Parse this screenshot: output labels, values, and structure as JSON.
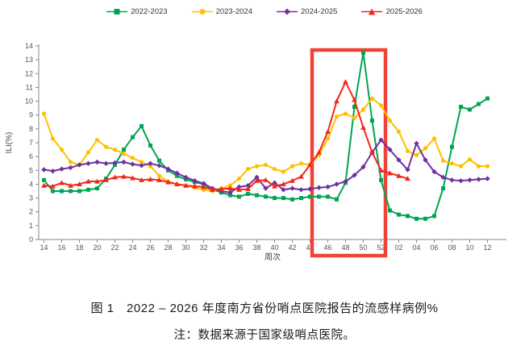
{
  "figure": {
    "title": "图 1　2022 – 2026 年度南方省份哨点医院报告的流感样病例%",
    "note": "注：数据来源于国家级哨点医院。"
  },
  "chart_data": {
    "type": "line",
    "title": "",
    "xlabel": "周次",
    "ylabel": "ILI(%)",
    "ylim": [
      0,
      14
    ],
    "y_ticks": [
      0,
      1,
      2,
      3,
      4,
      5,
      6,
      7,
      8,
      9,
      10,
      11,
      12,
      13,
      14
    ],
    "grid": false,
    "legend_position": "top-center",
    "x_tick_labels": [
      "14",
      "16",
      "18",
      "20",
      "22",
      "24",
      "26",
      "28",
      "30",
      "32",
      "34",
      "36",
      "38",
      "40",
      "42",
      "44",
      "46",
      "48",
      "50",
      "52",
      "02",
      "04",
      "06",
      "08",
      "10",
      "12"
    ],
    "categories": [
      "14",
      "15",
      "16",
      "17",
      "18",
      "19",
      "20",
      "21",
      "22",
      "23",
      "24",
      "25",
      "26",
      "27",
      "28",
      "29",
      "30",
      "31",
      "32",
      "33",
      "34",
      "35",
      "36",
      "37",
      "38",
      "39",
      "40",
      "41",
      "42",
      "43",
      "44",
      "45",
      "46",
      "47",
      "48",
      "49",
      "50",
      "51",
      "52",
      "01",
      "02",
      "03",
      "04",
      "05",
      "06",
      "07",
      "08",
      "09",
      "10",
      "11",
      "12"
    ],
    "series": [
      {
        "name": "2022-2023",
        "color": "#00a551",
        "marker": "square",
        "values": [
          4.3,
          3.5,
          3.5,
          3.5,
          3.5,
          3.6,
          3.7,
          4.4,
          5.4,
          6.5,
          7.4,
          8.2,
          6.8,
          5.7,
          5.0,
          4.6,
          4.35,
          4.15,
          4.0,
          3.6,
          3.4,
          3.2,
          3.1,
          3.3,
          3.2,
          3.1,
          3.0,
          3.0,
          2.9,
          3.0,
          3.1,
          3.1,
          3.1,
          2.9,
          4.1,
          9.6,
          13.5,
          8.6,
          4.3,
          2.1,
          1.8,
          1.7,
          1.5,
          1.5,
          1.7,
          3.7,
          6.7,
          9.6,
          9.4,
          9.8,
          10.2
        ]
      },
      {
        "name": "2023-2024",
        "color": "#ffc000",
        "marker": "circle",
        "values": [
          9.1,
          7.3,
          6.5,
          5.6,
          5.4,
          6.3,
          7.2,
          6.7,
          6.5,
          6.2,
          5.9,
          5.6,
          5.3,
          4.6,
          4.2,
          4.0,
          3.9,
          3.75,
          3.6,
          3.5,
          3.7,
          3.9,
          4.4,
          5.1,
          5.3,
          5.4,
          5.1,
          4.9,
          5.3,
          5.5,
          5.4,
          6.1,
          7.3,
          8.9,
          9.1,
          8.8,
          9.4,
          10.2,
          9.7,
          8.6,
          7.8,
          6.4,
          6.1,
          6.6,
          7.3,
          5.7,
          5.5,
          5.3,
          5.8,
          5.3,
          5.3
        ]
      },
      {
        "name": "2024-2025",
        "color": "#7030a0",
        "marker": "diamond",
        "values": [
          5.05,
          4.95,
          5.1,
          5.2,
          5.4,
          5.5,
          5.6,
          5.5,
          5.55,
          5.6,
          5.45,
          5.35,
          5.5,
          5.35,
          5.1,
          4.8,
          4.5,
          4.25,
          4.05,
          3.7,
          3.5,
          3.4,
          3.8,
          3.9,
          4.5,
          3.7,
          4.1,
          3.6,
          3.7,
          3.6,
          3.65,
          3.75,
          3.8,
          4.0,
          4.2,
          4.65,
          5.25,
          6.3,
          7.2,
          6.5,
          5.75,
          5.05,
          6.95,
          5.75,
          4.9,
          4.5,
          4.3,
          4.25,
          4.3,
          4.35,
          4.4
        ]
      },
      {
        "name": "2025-2026",
        "color": "#f2271c",
        "marker": "triangle",
        "values": [
          3.9,
          3.85,
          4.1,
          3.9,
          4.0,
          4.2,
          4.2,
          4.3,
          4.5,
          4.55,
          4.45,
          4.3,
          4.35,
          4.3,
          4.15,
          4.0,
          3.9,
          3.85,
          3.8,
          3.6,
          3.65,
          3.7,
          3.6,
          3.65,
          4.25,
          4.3,
          3.85,
          4.0,
          4.25,
          4.55,
          5.4,
          6.3,
          7.8,
          10.0,
          11.4,
          10.1,
          8.1,
          6.3,
          5.0,
          4.8,
          4.6,
          4.4,
          null,
          null,
          null,
          null,
          null,
          null,
          null,
          null,
          null
        ]
      }
    ],
    "annotation_box": {
      "from_week": "46",
      "to_week": "52",
      "color": "#f04237",
      "note": "highlighted weeks 46-52"
    }
  }
}
